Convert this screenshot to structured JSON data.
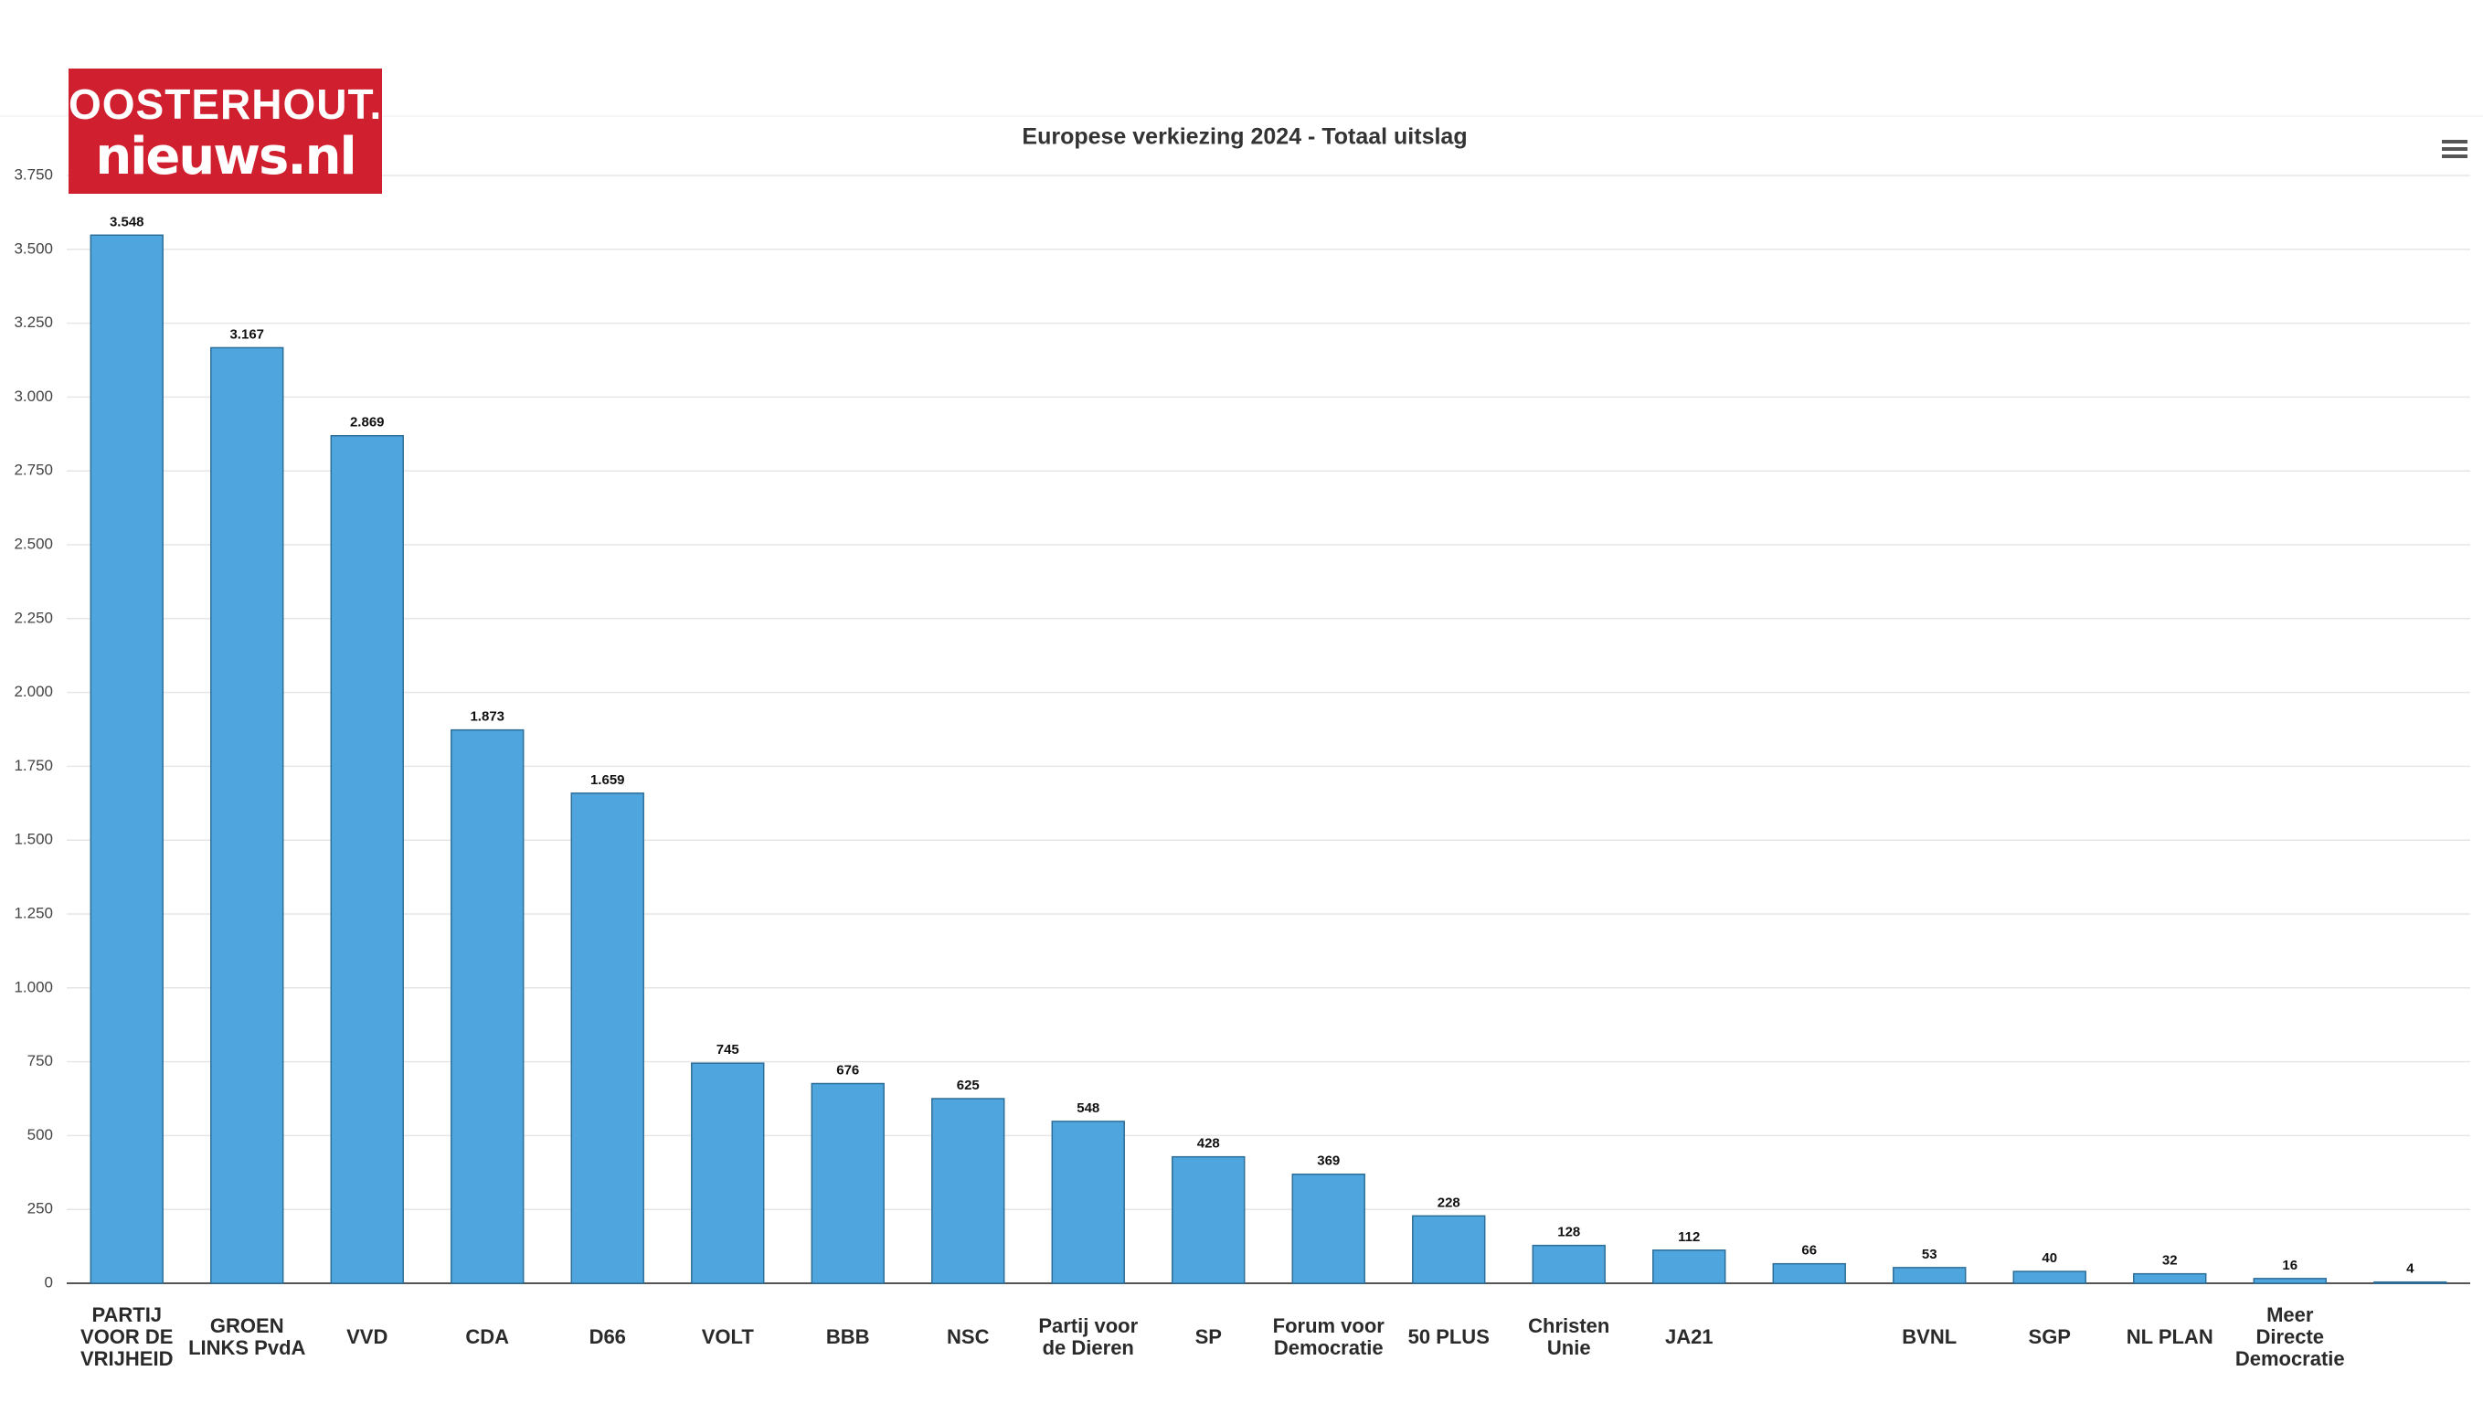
{
  "brand": {
    "line1": "OOSTERHOUT.",
    "line2": "nieuws.nl"
  },
  "chart_data": {
    "type": "bar",
    "title": "Europese verkiezing 2024 - Totaal uitslag",
    "categories": [
      "PARTIJ VOOR DE VRIJHEID",
      "GROEN LINKS PvdA",
      "VVD",
      "CDA",
      "D66",
      "VOLT",
      "BBB",
      "NSC",
      "Partij voor de Dieren",
      "SP",
      "Forum voor Democratie",
      "50 PLUS",
      "Christen Unie",
      "JA21",
      null,
      "BVNL",
      "SGP",
      "NL PLAN",
      "Meer Directe Democratie",
      null
    ],
    "values": [
      3548,
      3167,
      2869,
      1873,
      1659,
      745,
      676,
      625,
      548,
      428,
      369,
      228,
      128,
      112,
      66,
      53,
      40,
      32,
      16,
      4
    ],
    "value_labels": [
      "3.548",
      "3.167",
      "2.869",
      "1.873",
      "1.659",
      "745",
      "676",
      "625",
      "548",
      "428",
      "369",
      "228",
      "128",
      "112",
      "66",
      "53",
      "40",
      "32",
      "16",
      "4"
    ],
    "color": "#4fa6de",
    "ylim": [
      0,
      3750
    ],
    "yticks": [
      0,
      250,
      500,
      750,
      {
        "value": 1000,
        "label": "1.000"
      },
      {
        "value": 1250,
        "label": "1.250"
      },
      {
        "value": 1500,
        "label": "1.500"
      },
      {
        "value": 1750,
        "label": "1.750"
      },
      {
        "value": 2000,
        "label": "2.000"
      },
      {
        "value": 2250,
        "label": "2.250"
      },
      {
        "value": 2500,
        "label": "2.500"
      },
      {
        "value": 2750,
        "label": "2.750"
      },
      {
        "value": 3000,
        "label": "3.000"
      },
      {
        "value": 3250,
        "label": "3.250"
      },
      {
        "value": 3500,
        "label": "3.500"
      },
      {
        "value": 3750,
        "label": "3.750"
      }
    ],
    "grid": true
  }
}
